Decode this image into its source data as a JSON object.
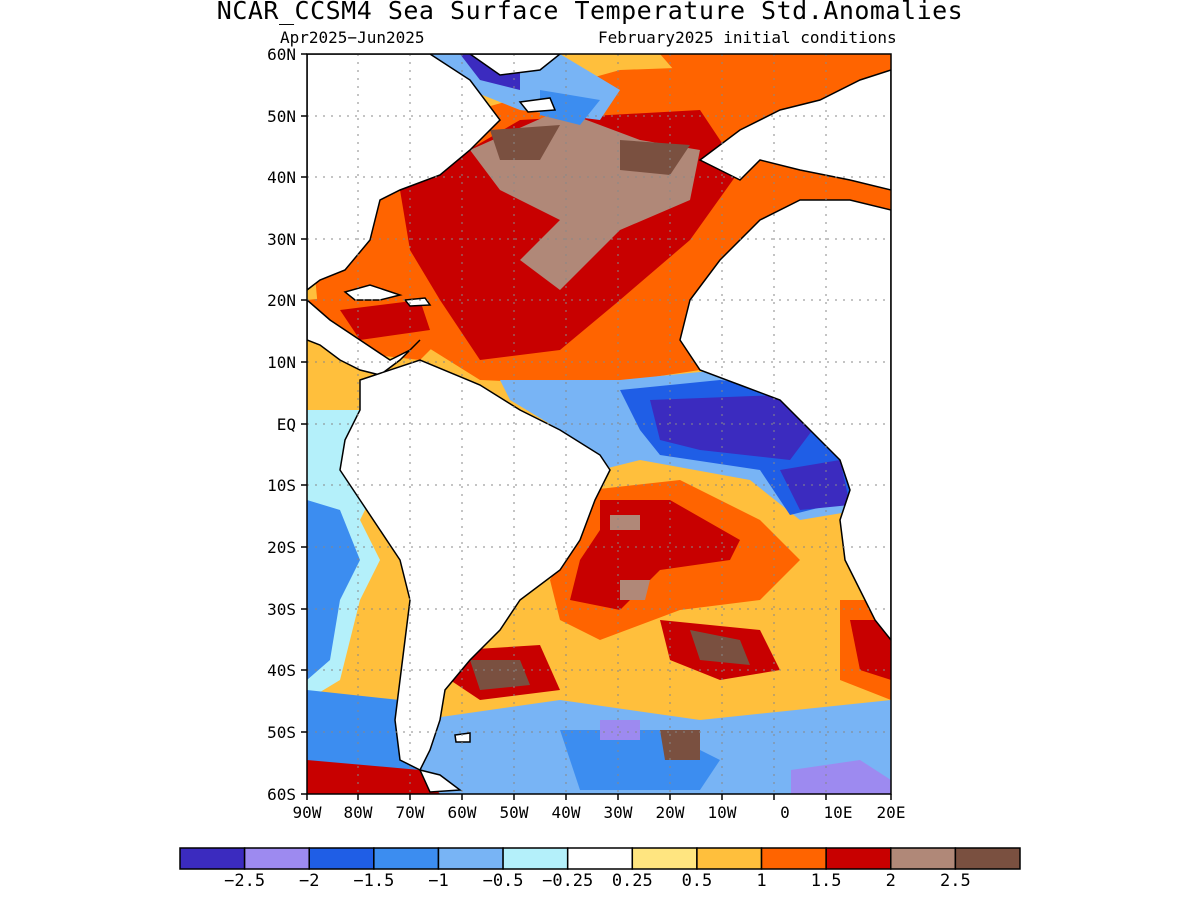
{
  "header": {
    "title": "NCAR_CCSM4 Sea Surface Temperature Std.Anomalies",
    "period": "Apr2025−Jun2025",
    "init": "February2025 initial conditions"
  },
  "axes": {
    "lat_labels": [
      "60N",
      "50N",
      "40N",
      "30N",
      "20N",
      "10N",
      "EQ",
      "10S",
      "20S",
      "30S",
      "40S",
      "50S",
      "60S"
    ],
    "lon_labels": [
      "90W",
      "80W",
      "70W",
      "60W",
      "50W",
      "40W",
      "30W",
      "20W",
      "10W",
      "0",
      "10E",
      "20E"
    ]
  },
  "legend": {
    "colors": [
      "#3b2bbf",
      "#9d8af0",
      "#1f5ee6",
      "#3c8df0",
      "#78b4f5",
      "#b4f0fa",
      "#ffffff",
      "#ffe580",
      "#ffbf3c",
      "#ff6400",
      "#c80000",
      "#b08878",
      "#7a5040"
    ],
    "labels": [
      "−2.5",
      "−2",
      "−1.5",
      "−1",
      "−0.5",
      "−0.25",
      "0.25",
      "0.5",
      "1",
      "1.5",
      "2",
      "2.5"
    ]
  },
  "map": {
    "region": "Atlantic Ocean",
    "land_color": "#ffffff",
    "coast_color": "#000000",
    "grid": true
  }
}
